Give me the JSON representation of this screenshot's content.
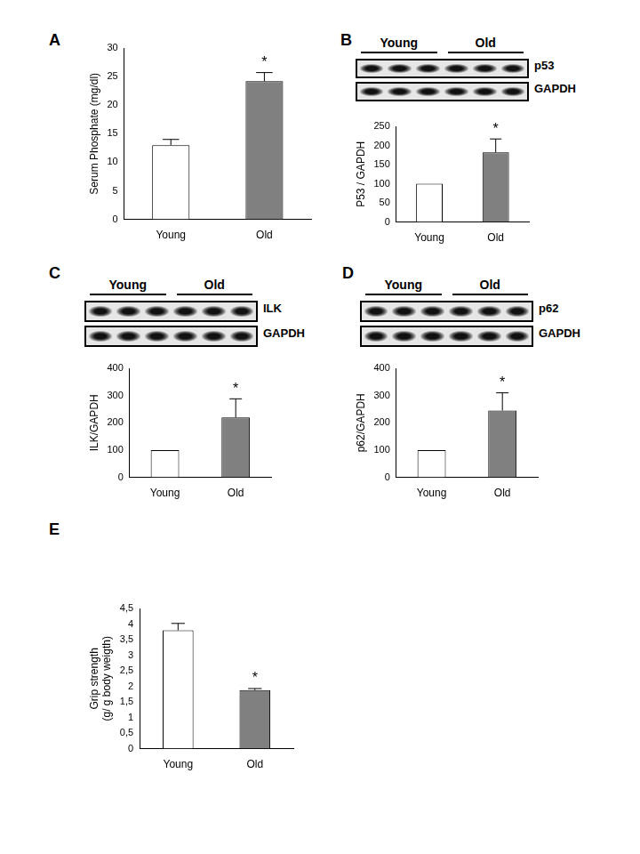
{
  "chart_data": [
    {
      "type": "bar",
      "title": "A",
      "categories": [
        "Young",
        "Old"
      ],
      "values": [
        13,
        24.2
      ],
      "errors": [
        1,
        1.5
      ],
      "annotations": [
        null,
        "*"
      ],
      "colors": [
        "#ffffff",
        "#808080"
      ],
      "y_label": "Serum Phosphate (mg/dl)",
      "ylim": [
        0,
        30
      ],
      "yticks": [
        0,
        5,
        10,
        15,
        20,
        25,
        30
      ],
      "grid": false
    },
    {
      "type": "bar",
      "title": "B",
      "blot": {
        "groups": [
          "Young",
          "Old"
        ],
        "proteins": [
          "p53",
          "GAPDH"
        ]
      },
      "categories": [
        "Young",
        "Old"
      ],
      "values": [
        100,
        182
      ],
      "errors": [
        0,
        35
      ],
      "annotations": [
        null,
        "*"
      ],
      "colors": [
        "#ffffff",
        "#808080"
      ],
      "y_label": "P53 / GAPDH",
      "ylim": [
        0,
        250
      ],
      "yticks": [
        0,
        50,
        100,
        150,
        200,
        250
      ],
      "grid": false
    },
    {
      "type": "bar",
      "title": "C",
      "blot": {
        "groups": [
          "Young",
          "Old"
        ],
        "proteins": [
          "ILK",
          "GAPDH"
        ]
      },
      "categories": [
        "Young",
        "Old"
      ],
      "values": [
        100,
        220
      ],
      "errors": [
        0,
        68
      ],
      "annotations": [
        null,
        "*"
      ],
      "colors": [
        "#ffffff",
        "#808080"
      ],
      "y_label": "ILK/GAPDH",
      "ylim": [
        0,
        400
      ],
      "yticks": [
        0,
        100,
        200,
        300,
        400
      ],
      "grid": false
    },
    {
      "type": "bar",
      "title": "D",
      "blot": {
        "groups": [
          "Young",
          "Old"
        ],
        "proteins": [
          "p62",
          "GAPDH"
        ]
      },
      "categories": [
        "Young",
        "Old"
      ],
      "values": [
        100,
        245
      ],
      "errors": [
        0,
        65
      ],
      "annotations": [
        null,
        "*"
      ],
      "colors": [
        "#ffffff",
        "#808080"
      ],
      "y_label": "p62/GAPDH",
      "ylim": [
        0,
        400
      ],
      "yticks": [
        0,
        100,
        200,
        300,
        400
      ],
      "grid": false
    },
    {
      "type": "bar",
      "title": "E",
      "categories": [
        "Young",
        "Old"
      ],
      "values": [
        3.8,
        1.88
      ],
      "errors": [
        0.22,
        0.05
      ],
      "annotations": [
        null,
        "*"
      ],
      "colors": [
        "#ffffff",
        "#808080"
      ],
      "y_label": [
        "Grip strength",
        "(g/ g body weigth)"
      ],
      "ylim": [
        0,
        4.5
      ],
      "yticks": [
        0,
        {
          "value": 0.5,
          "label": "0,5"
        },
        1,
        {
          "value": 1.5,
          "label": "1,5"
        },
        2,
        {
          "value": 2.5,
          "label": "2,5"
        },
        3,
        {
          "value": 3.5,
          "label": "3,5"
        },
        4,
        {
          "value": 4.5,
          "label": "4,5"
        }
      ],
      "grid": false
    }
  ]
}
